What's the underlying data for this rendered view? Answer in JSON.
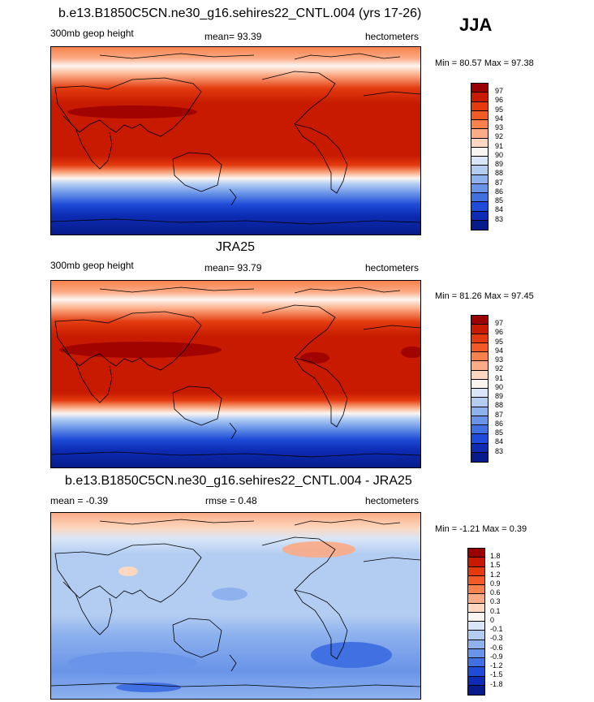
{
  "season": "JJA",
  "panels": [
    {
      "title": "b.e13.B1850C5CN.ne30_g16.sehires22_CNTL.004 (yrs 17-26)",
      "variable": "300mb geop height",
      "mean": "mean=  93.39",
      "units": "hectometers",
      "minmax": "Min =  80.57 Max =  97.38",
      "levels": [
        "97",
        "96",
        "95",
        "94",
        "93",
        "92",
        "91",
        "90",
        "89",
        "88",
        "87",
        "86",
        "85",
        "84",
        "83"
      ],
      "colors": [
        "#990000",
        "#c71a00",
        "#e33b0f",
        "#f25a26",
        "#f7824d",
        "#fbab85",
        "#fdd7bf",
        "#fbf5f1",
        "#d8e6f7",
        "#b3cdf2",
        "#8eb2ee",
        "#6994e8",
        "#4170e3",
        "#1e4bd7",
        "#0d2bb3",
        "#071c8a"
      ]
    },
    {
      "title": "JRA25",
      "variable": "300mb geop height",
      "mean": "mean=  93.79",
      "units": "hectometers",
      "minmax": "Min =  81.26 Max =  97.45",
      "levels": [
        "97",
        "96",
        "95",
        "94",
        "93",
        "92",
        "91",
        "90",
        "89",
        "88",
        "87",
        "86",
        "85",
        "84",
        "83"
      ],
      "colors": [
        "#990000",
        "#c71a00",
        "#e33b0f",
        "#f25a26",
        "#f7824d",
        "#fbab85",
        "#fdd7bf",
        "#fbf5f1",
        "#d8e6f7",
        "#b3cdf2",
        "#8eb2ee",
        "#6994e8",
        "#4170e3",
        "#1e4bd7",
        "#0d2bb3",
        "#071c8a"
      ]
    },
    {
      "title": "b.e13.B1850C5CN.ne30_g16.sehires22_CNTL.004 - JRA25",
      "mean": "mean =  -0.39",
      "rmse": "rmse =   0.48",
      "units": "hectometers",
      "minmax": "Min =  -1.21 Max =   0.39",
      "levels": [
        "1.8",
        "1.5",
        "1.2",
        "0.9",
        "0.6",
        "0.3",
        "0.1",
        "0",
        "-0.1",
        "-0.3",
        "-0.6",
        "-0.9",
        "-1.2",
        "-1.5",
        "-1.8"
      ],
      "colors": [
        "#990000",
        "#c71a00",
        "#e33b0f",
        "#f25a26",
        "#f7824d",
        "#fbab85",
        "#fdd7bf",
        "#fbf5f1",
        "#d8e6f7",
        "#b3cdf2",
        "#8eb2ee",
        "#6994e8",
        "#4170e3",
        "#1e4bd7",
        "#0d2bb3",
        "#071c8a"
      ]
    }
  ]
}
